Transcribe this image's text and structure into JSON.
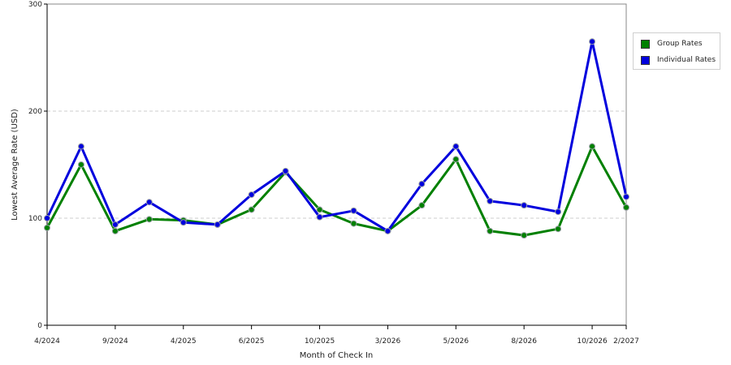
{
  "chart_data": {
    "type": "line",
    "xlabel": "Month of Check In",
    "ylabel": "Lowest Average Rate (USD)",
    "ylim": [
      0,
      300
    ],
    "yticks": [
      0,
      100,
      200,
      300
    ],
    "x_labels": [
      "4/2024",
      "9/2024",
      "4/2025",
      "6/2025",
      "10/2025",
      "3/2026",
      "5/2026",
      "8/2026",
      "10/2026",
      "2/2027"
    ],
    "x_label_positions": [
      0,
      2,
      4,
      6,
      8,
      10,
      12,
      14,
      16,
      17
    ],
    "point_count": 18,
    "grid": "horizontal dashed",
    "legend_position": "right",
    "series": [
      {
        "name": "Group Rates",
        "color": "#008000",
        "values": [
          91,
          150,
          88,
          99,
          98,
          94,
          108,
          143,
          108,
          95,
          88,
          112,
          155,
          88,
          84,
          90,
          167,
          110
        ]
      },
      {
        "name": "Individual Rates",
        "color": "#0000dd",
        "values": [
          100,
          167,
          94,
          115,
          96,
          94,
          122,
          144,
          101,
          107,
          88,
          132,
          167,
          116,
          112,
          106,
          265,
          120
        ]
      }
    ]
  }
}
